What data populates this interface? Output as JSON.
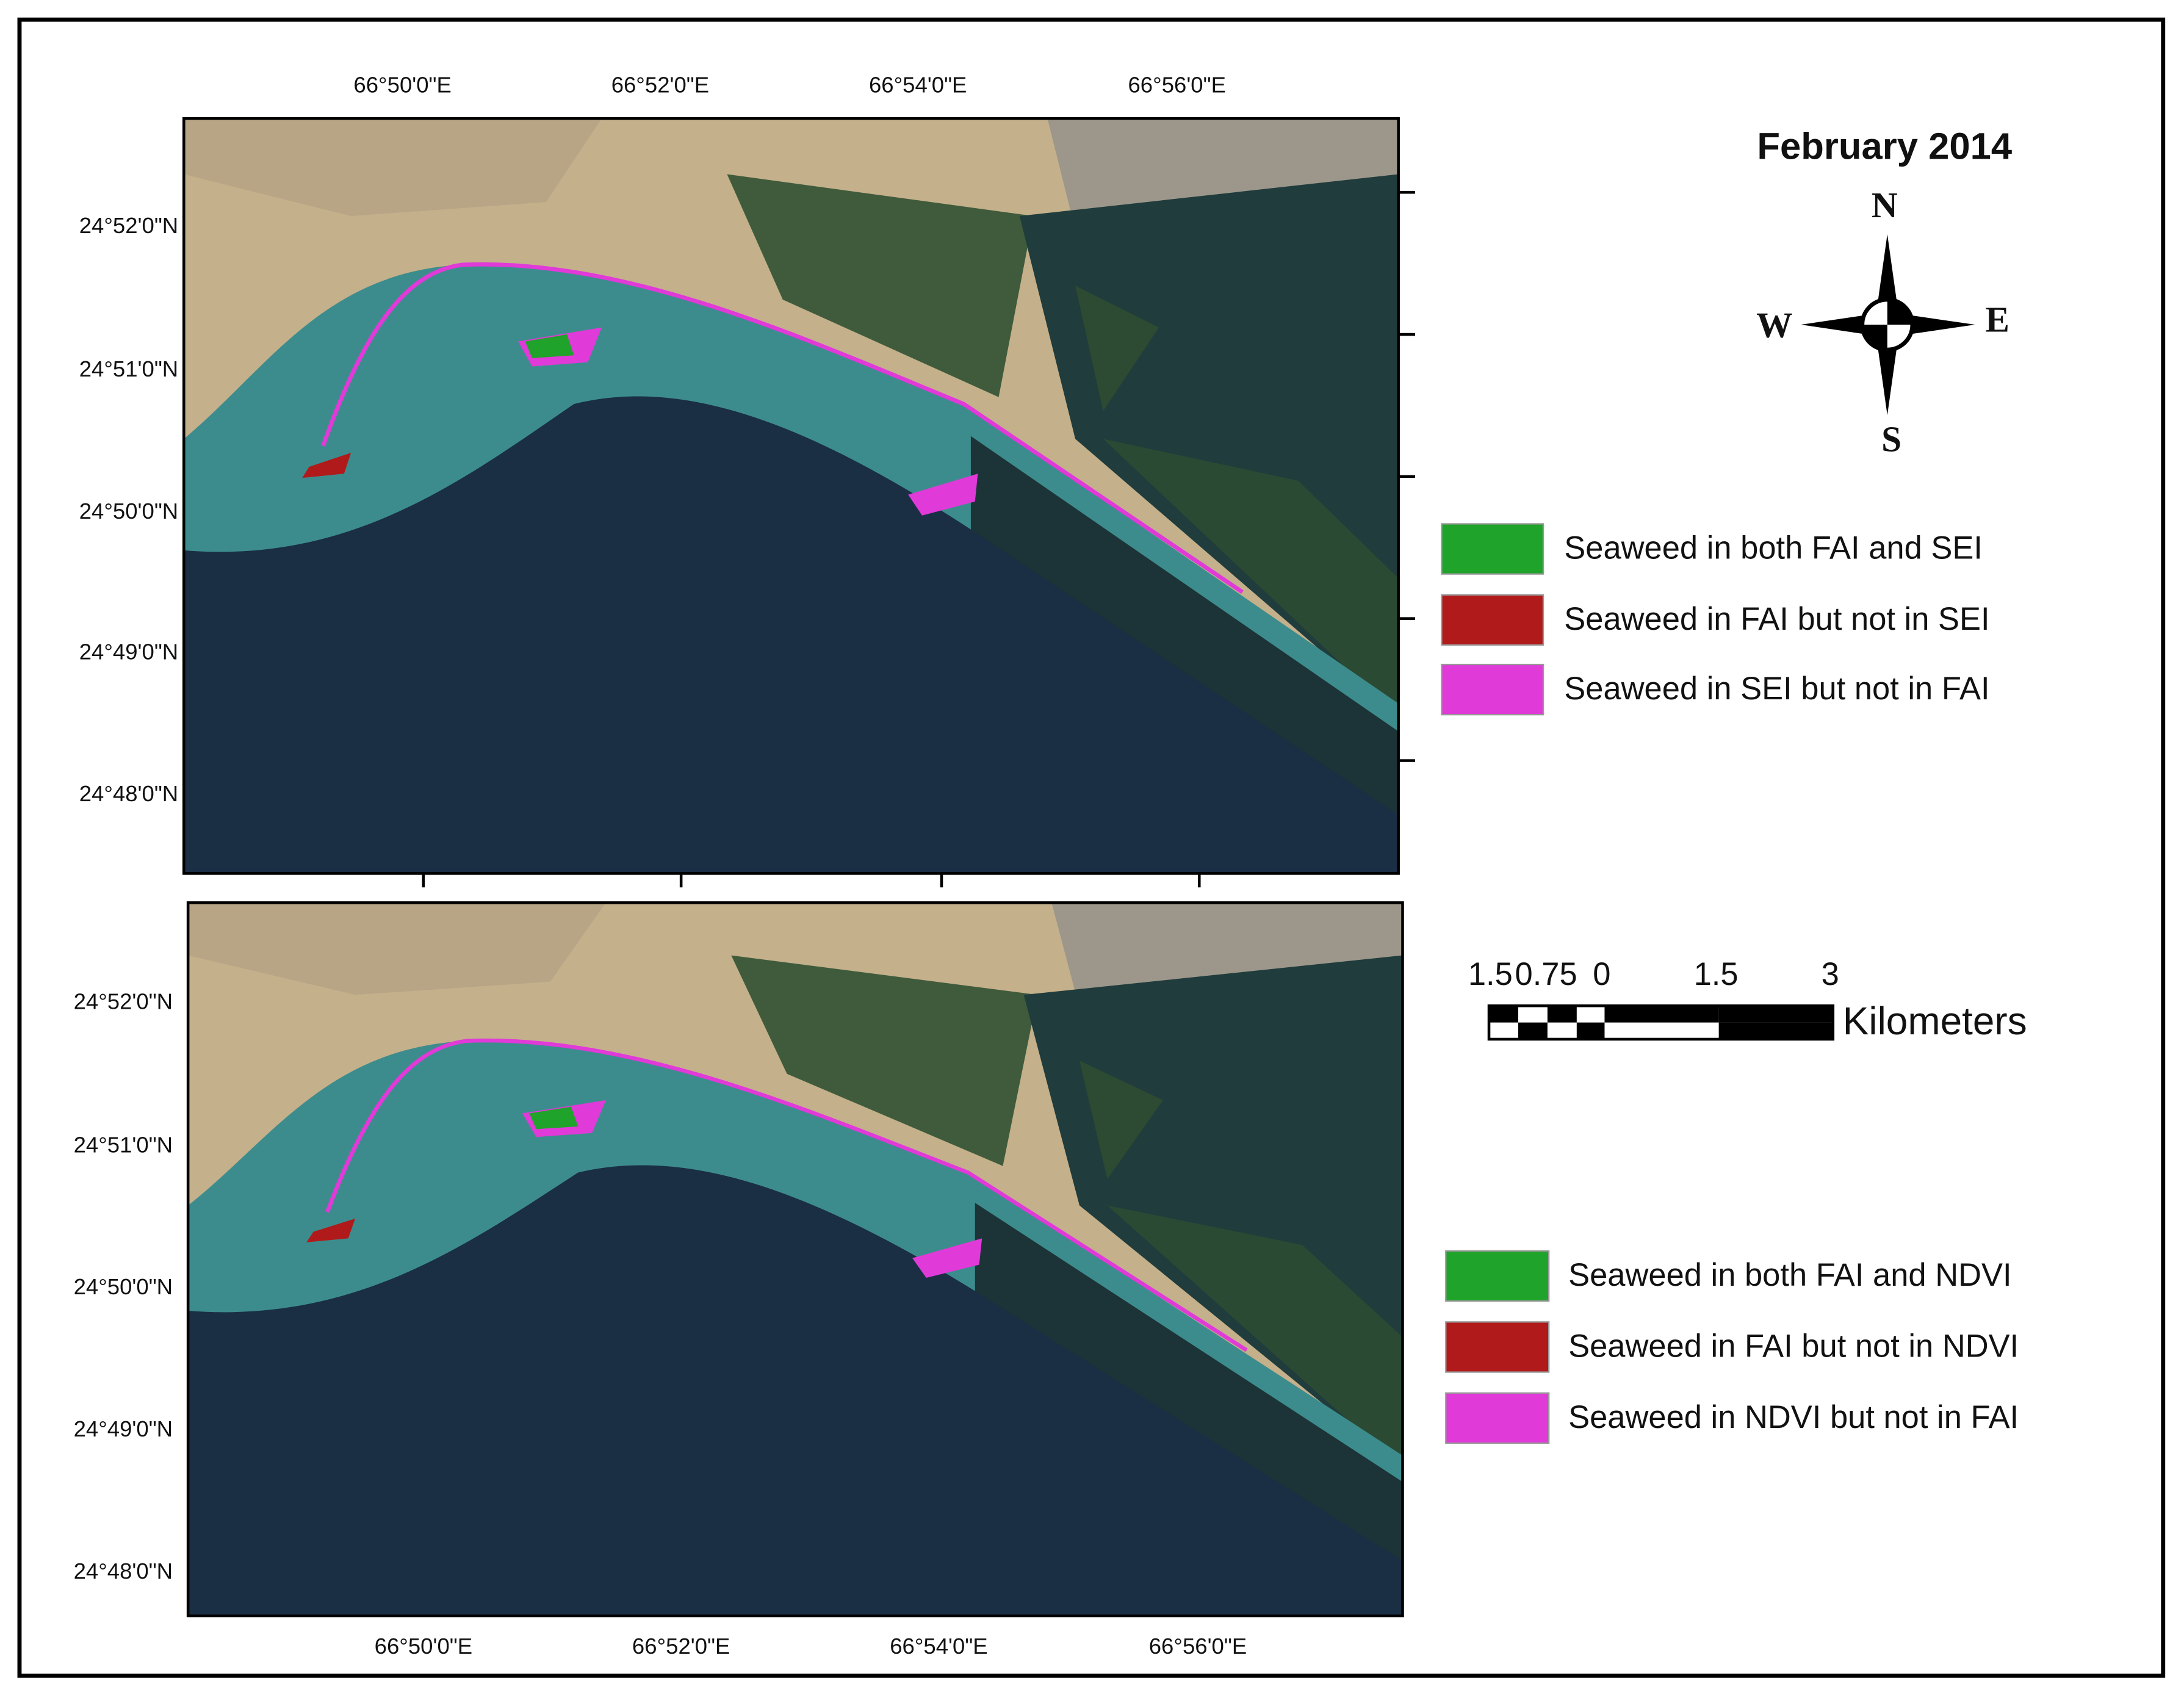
{
  "title": "February 2014",
  "compass": {
    "north": "N",
    "south": "S",
    "east": "E",
    "west": "W"
  },
  "top_map": {
    "x_labels": [
      "66°50'0\"E",
      "66°52'0\"E",
      "66°54'0\"E",
      "66°56'0\"E"
    ],
    "y_labels": [
      "24°52'0\"N",
      "24°51'0\"N",
      "24°50'0\"N",
      "24°49'0\"N",
      "24°48'0\"N"
    ]
  },
  "bottom_map": {
    "x_labels": [
      "66°50'0\"E",
      "66°52'0\"E",
      "66°54'0\"E",
      "66°56'0\"E"
    ],
    "y_labels": [
      "24°52'0\"N",
      "24°51'0\"N",
      "24°50'0\"N",
      "24°49'0\"N",
      "24°48'0\"N"
    ]
  },
  "legend_top": [
    "Seaweed in both FAI and SEI",
    "Seaweed in FAI but not in SEI",
    "Seaweed in SEI but not in FAI"
  ],
  "legend_bottom": [
    "Seaweed in both FAI and NDVI",
    "Seaweed in FAI but not in NDVI",
    "Seaweed in NDVI but not in FAI"
  ],
  "scale_bar": {
    "labels": [
      "1.5",
      "0.75",
      "0",
      "1.5",
      "3"
    ],
    "unit": "Kilometers"
  }
}
